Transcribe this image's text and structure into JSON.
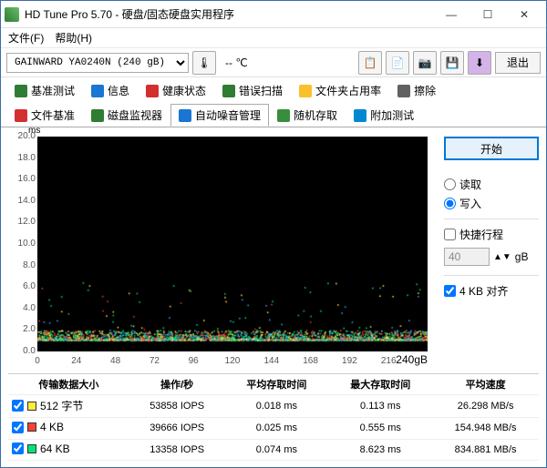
{
  "window": {
    "title": "HD Tune Pro 5.70 - 硬盘/固态硬盘实用程序"
  },
  "menu": {
    "file": "文件(F)",
    "help": "帮助(H)"
  },
  "toolbar": {
    "drive": "GAINWARD YA0240N (240 gB)",
    "temp": "-- ℃",
    "exit": "退出"
  },
  "tabs": {
    "row1": [
      {
        "label": "基准测试",
        "color": "#2e7d32"
      },
      {
        "label": "信息",
        "color": "#1976d2"
      },
      {
        "label": "健康状态",
        "color": "#d32f2f"
      },
      {
        "label": "错误扫描",
        "color": "#2e7d32"
      },
      {
        "label": "文件夹占用率",
        "color": "#fbc02d"
      },
      {
        "label": "擦除",
        "color": "#616161"
      }
    ],
    "row2": [
      {
        "label": "文件基准",
        "color": "#d32f2f"
      },
      {
        "label": "磁盘监视器",
        "color": "#2e7d32"
      },
      {
        "label": "自动噪音管理",
        "color": "#1976d2",
        "active": true
      },
      {
        "label": "随机存取",
        "color": "#388e3c"
      },
      {
        "label": "附加测试",
        "color": "#0288d1"
      }
    ]
  },
  "chart": {
    "background": "#000000",
    "ylim": [
      0,
      20
    ],
    "ystep": 2,
    "yunit": "ms",
    "xlim": [
      0,
      240
    ],
    "xstep": 24,
    "xunit": "gB",
    "scatter": {
      "colors": [
        "#ffeb3b",
        "#f44336",
        "#00e676",
        "#29b6f6"
      ],
      "baseline_y": 1.1,
      "noise_height": 0.9,
      "point_count": 2600
    }
  },
  "side": {
    "start": "开始",
    "read": "读取",
    "write": "写入",
    "write_selected": true,
    "quick": "快捷行程",
    "quick_checked": false,
    "gb_value": "40",
    "gb_unit": "gB",
    "align": "4 KB 对齐",
    "align_checked": true
  },
  "results": {
    "headers": [
      "传输数据大小",
      "操作/秒",
      "平均存取时间",
      "最大存取时间",
      "平均速度"
    ],
    "rows": [
      {
        "color": "#ffeb3b",
        "label": "512 字节",
        "iops": "53858 IOPS",
        "avg": "0.018 ms",
        "max": "0.113 ms",
        "speed": "26.298 MB/s"
      },
      {
        "color": "#f44336",
        "label": "4 KB",
        "iops": "39666 IOPS",
        "avg": "0.025 ms",
        "max": "0.555 ms",
        "speed": "154.948 MB/s"
      },
      {
        "color": "#00e676",
        "label": "64 KB",
        "iops": "13358 IOPS",
        "avg": "0.074 ms",
        "max": "8.623 ms",
        "speed": "834.881 MB/s"
      }
    ]
  }
}
